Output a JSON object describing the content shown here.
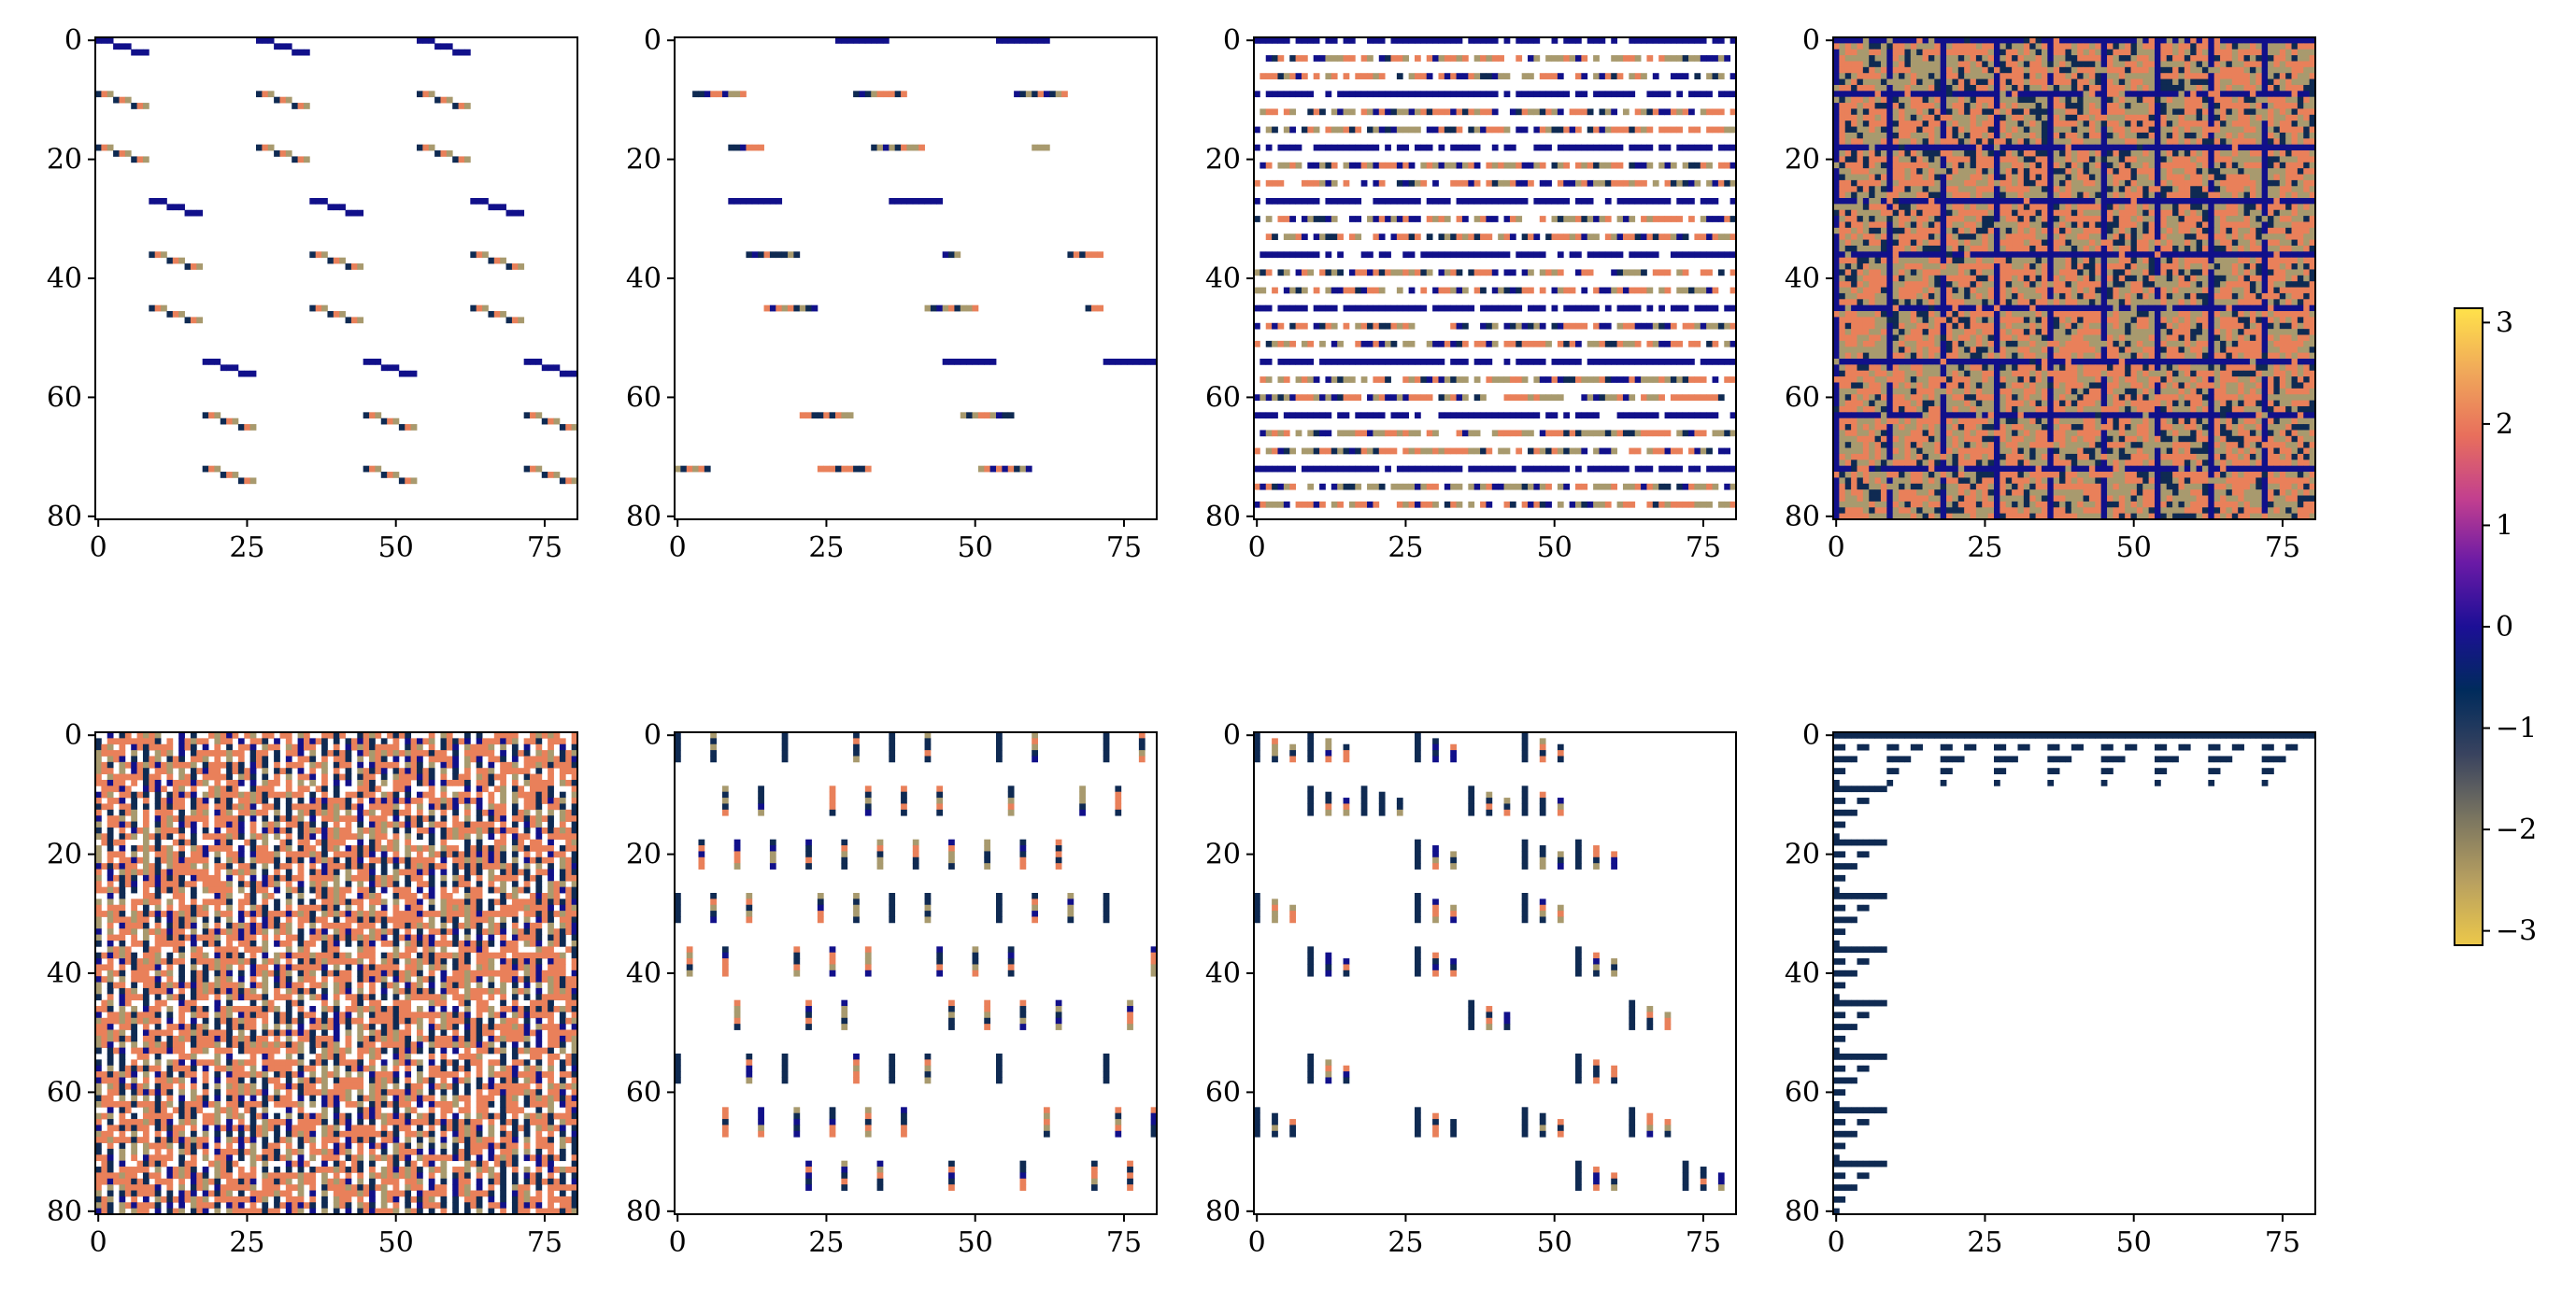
{
  "chart_data": [
    {
      "type": "heatmap",
      "panel": "top-1",
      "pattern": "sparse-stairs",
      "pattern_level": 0.05,
      "xlim": [
        0,
        81
      ],
      "ylim": [
        81,
        0
      ],
      "xticks": [
        0,
        25,
        50,
        75
      ],
      "yticks": [
        0,
        20,
        40,
        60,
        80
      ]
    },
    {
      "type": "heatmap",
      "panel": "top-2",
      "pattern": "horizontal-dashes",
      "pattern_level": 0.12,
      "xlim": [
        0,
        81
      ],
      "ylim": [
        81,
        0
      ],
      "xticks": [
        0,
        25,
        50,
        75
      ],
      "yticks": [
        0,
        20,
        40,
        60,
        80
      ]
    },
    {
      "type": "heatmap",
      "panel": "top-3",
      "pattern": "dense-horizontal-bands",
      "pattern_level": 0.35,
      "xlim": [
        0,
        81
      ],
      "ylim": [
        81,
        0
      ],
      "xticks": [
        0,
        25,
        50,
        75
      ],
      "yticks": [
        0,
        20,
        40,
        60,
        80
      ]
    },
    {
      "type": "heatmap",
      "panel": "top-4",
      "pattern": "full-fractal",
      "pattern_level": 1.0,
      "xlim": [
        0,
        81
      ],
      "ylim": [
        81,
        0
      ],
      "xticks": [
        0,
        25,
        50,
        75
      ],
      "yticks": [
        0,
        20,
        40,
        60,
        80
      ]
    },
    {
      "type": "heatmap",
      "panel": "bottom-1",
      "pattern": "dense-vertical-bands",
      "pattern_level": 0.55,
      "xlim": [
        0,
        81
      ],
      "ylim": [
        81,
        0
      ],
      "xticks": [
        0,
        25,
        50,
        75
      ],
      "yticks": [
        0,
        20,
        40,
        60,
        80
      ]
    },
    {
      "type": "heatmap",
      "panel": "bottom-2",
      "pattern": "vertical-dashes",
      "pattern_level": 0.12,
      "xlim": [
        0,
        81
      ],
      "ylim": [
        81,
        0
      ],
      "xticks": [
        0,
        25,
        50,
        75
      ],
      "yticks": [
        0,
        20,
        40,
        60,
        80
      ]
    },
    {
      "type": "heatmap",
      "panel": "bottom-3",
      "pattern": "sparse-vertical-clusters",
      "pattern_level": 0.04,
      "xlim": [
        0,
        81
      ],
      "ylim": [
        81,
        0
      ],
      "xticks": [
        0,
        25,
        50,
        75
      ],
      "yticks": [
        0,
        20,
        40,
        60,
        80
      ]
    },
    {
      "type": "heatmap",
      "panel": "bottom-4",
      "pattern": "sierpinski-triangles",
      "pattern_level": 0.02,
      "xlim": [
        0,
        81
      ],
      "ylim": [
        81,
        0
      ],
      "xticks": [
        0,
        25,
        50,
        75
      ],
      "yticks": [
        0,
        20,
        40,
        60,
        80
      ]
    }
  ],
  "colorbar": {
    "range": [
      -3.14159,
      3.14159
    ],
    "ticks": [
      3,
      2,
      1,
      0,
      -1,
      -2,
      -3
    ],
    "tick_labels": [
      "3",
      "2",
      "1",
      "0",
      "−1",
      "−2",
      "−3"
    ],
    "stops": [
      "#ffe24a",
      "#f0a85a",
      "#e86f5c",
      "#c23f8f",
      "#6a1aa6",
      "#1c0f96",
      "#002b5c",
      "#39435f",
      "#7a7560",
      "#b8a060",
      "#ecc84a"
    ]
  },
  "colors": {
    "navy": "#11108a",
    "dark": "#0f2a52",
    "orange": "#e9805a",
    "khaki": "#a89a6e",
    "background": "#ffffff"
  }
}
